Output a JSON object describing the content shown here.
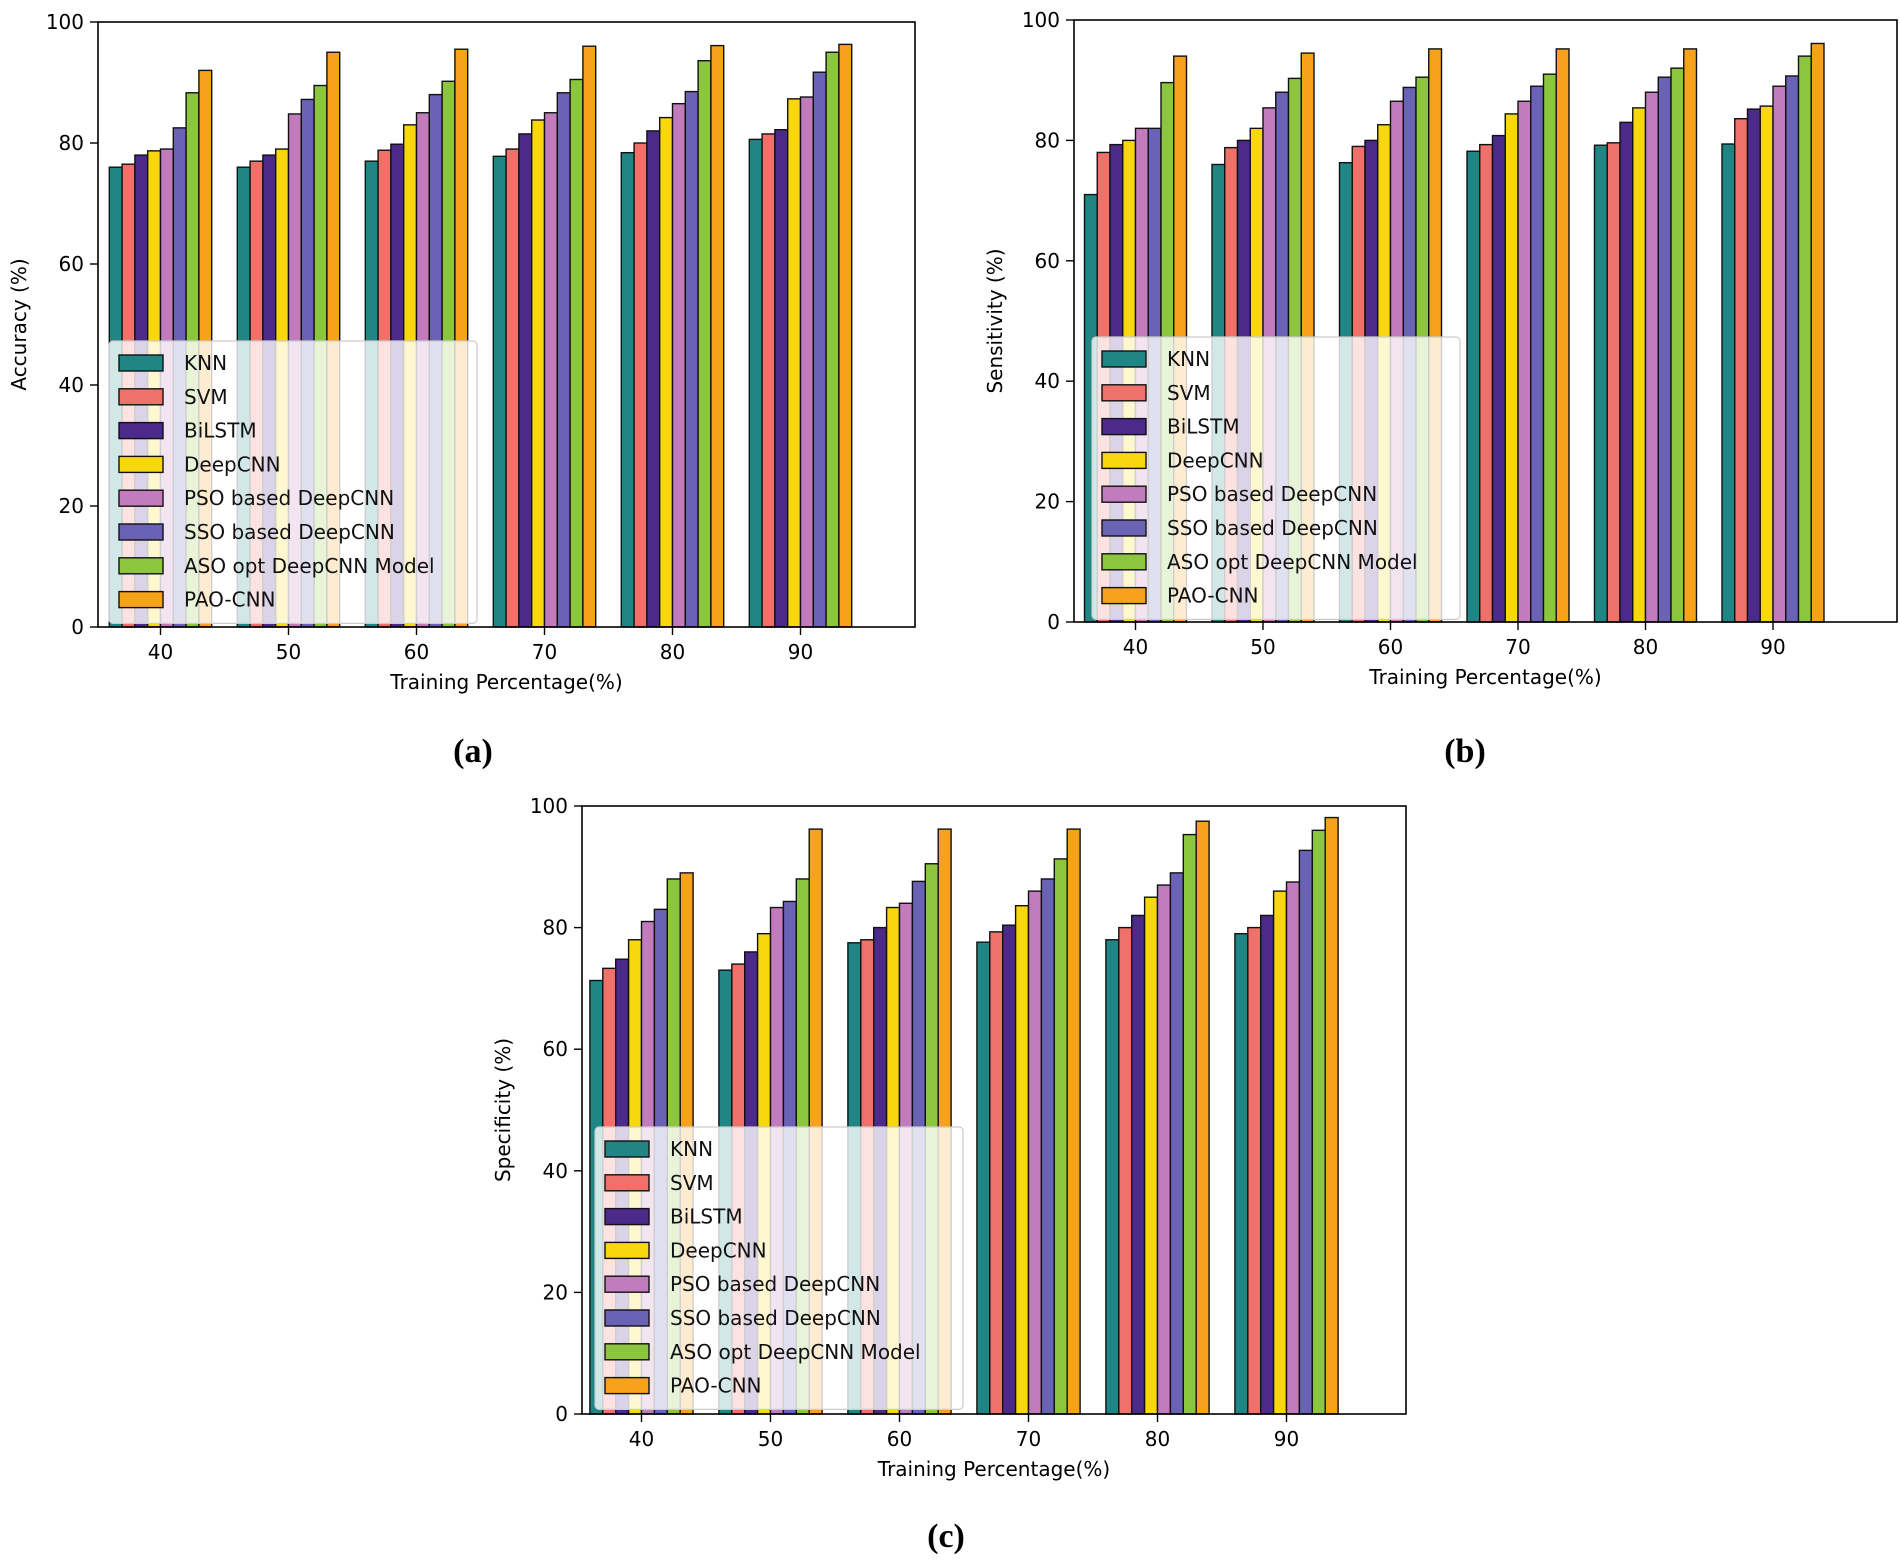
{
  "figure": {
    "panels": [
      "(a)",
      "(b)",
      "(c)"
    ]
  },
  "series_colors": {
    "KNN": "#1f8585",
    "SVM": "#f0706a",
    "BiLSTM": "#4b2a8a",
    "DeepCNN": "#f8d70f",
    "PSO based DeepCNN": "#c27bbd",
    "SSO based DeepCNN": "#6a63b5",
    "ASO opt DeepCNN Model": "#8cc63f",
    "PAO-CNN": "#f7a21b"
  },
  "chart_data": [
    {
      "panel": "(a)",
      "type": "bar",
      "xlabel": "Training Percentage(%)",
      "ylabel": "Accuracy (%)",
      "ylim": [
        0,
        100
      ],
      "yticks": [
        0,
        20,
        40,
        60,
        80,
        100
      ],
      "categories": [
        "40",
        "50",
        "60",
        "70",
        "80",
        "90"
      ],
      "legend_position": "lower-left",
      "series": [
        {
          "name": "KNN",
          "values": [
            76.0,
            76.0,
            77.0,
            77.8,
            78.4,
            80.6
          ]
        },
        {
          "name": "SVM",
          "values": [
            76.5,
            77.0,
            78.8,
            79.0,
            80.0,
            81.5
          ]
        },
        {
          "name": "BiLSTM",
          "values": [
            78.0,
            78.0,
            79.8,
            81.5,
            82.0,
            82.2
          ]
        },
        {
          "name": "DeepCNN",
          "values": [
            78.7,
            79.0,
            83.0,
            83.8,
            84.2,
            87.3
          ]
        },
        {
          "name": "PSO based DeepCNN",
          "values": [
            79.0,
            84.8,
            85.0,
            85.0,
            86.5,
            87.6
          ]
        },
        {
          "name": "SSO based DeepCNN",
          "values": [
            82.5,
            87.2,
            88.0,
            88.3,
            88.5,
            91.7
          ]
        },
        {
          "name": "ASO opt DeepCNN Model",
          "values": [
            88.3,
            89.5,
            90.2,
            90.5,
            93.6,
            95.0
          ]
        },
        {
          "name": "PAO-CNN",
          "values": [
            92.0,
            95.0,
            95.5,
            96.0,
            96.1,
            96.3
          ]
        }
      ]
    },
    {
      "panel": "(b)",
      "type": "bar",
      "xlabel": "Training Percentage(%)",
      "ylabel": "Sensitivity (%)",
      "ylim": [
        0,
        100
      ],
      "yticks": [
        0,
        20,
        40,
        60,
        80,
        100
      ],
      "categories": [
        "40",
        "50",
        "60",
        "70",
        "80",
        "90"
      ],
      "legend_position": "lower-left",
      "series": [
        {
          "name": "KNN",
          "values": [
            71.0,
            76.0,
            76.3,
            78.2,
            79.2,
            79.4
          ]
        },
        {
          "name": "SVM",
          "values": [
            78.0,
            78.8,
            79.0,
            79.3,
            79.6,
            83.6
          ]
        },
        {
          "name": "BiLSTM",
          "values": [
            79.3,
            80.0,
            80.0,
            80.8,
            83.0,
            85.2
          ]
        },
        {
          "name": "DeepCNN",
          "values": [
            80.0,
            82.0,
            82.6,
            84.4,
            85.4,
            85.7
          ]
        },
        {
          "name": "PSO based DeepCNN",
          "values": [
            82.0,
            85.4,
            86.5,
            86.5,
            88.0,
            89.0
          ]
        },
        {
          "name": "SSO based DeepCNN",
          "values": [
            82.0,
            88.0,
            88.8,
            89.0,
            90.5,
            90.7
          ]
        },
        {
          "name": "ASO opt DeepCNN Model",
          "values": [
            89.6,
            90.3,
            90.5,
            91.0,
            92.0,
            94.0
          ]
        },
        {
          "name": "PAO-CNN",
          "values": [
            94.0,
            94.5,
            95.2,
            95.2,
            95.2,
            96.1
          ]
        }
      ]
    },
    {
      "panel": "(c)",
      "type": "bar",
      "xlabel": "Training Percentage(%)",
      "ylabel": "Specificity (%)",
      "ylim": [
        0,
        100
      ],
      "yticks": [
        0,
        20,
        40,
        60,
        80,
        100
      ],
      "categories": [
        "40",
        "50",
        "60",
        "70",
        "80",
        "90"
      ],
      "legend_position": "lower-left",
      "series": [
        {
          "name": "KNN",
          "values": [
            71.3,
            73.0,
            77.5,
            77.6,
            78.0,
            79.0
          ]
        },
        {
          "name": "SVM",
          "values": [
            73.3,
            74.0,
            78.0,
            79.3,
            80.0,
            80.0
          ]
        },
        {
          "name": "BiLSTM",
          "values": [
            74.8,
            76.0,
            80.0,
            80.4,
            82.0,
            82.0
          ]
        },
        {
          "name": "DeepCNN",
          "values": [
            78.0,
            79.0,
            83.3,
            83.6,
            85.0,
            86.0
          ]
        },
        {
          "name": "PSO based DeepCNN",
          "values": [
            81.0,
            83.3,
            84.0,
            86.0,
            87.0,
            87.5
          ]
        },
        {
          "name": "SSO based DeepCNN",
          "values": [
            83.0,
            84.3,
            87.6,
            88.0,
            89.0,
            92.7
          ]
        },
        {
          "name": "ASO opt DeepCNN Model",
          "values": [
            88.0,
            88.0,
            90.5,
            91.3,
            95.3,
            96.0
          ]
        },
        {
          "name": "PAO-CNN",
          "values": [
            89.0,
            96.2,
            96.2,
            96.2,
            97.5,
            98.1
          ]
        }
      ]
    }
  ]
}
